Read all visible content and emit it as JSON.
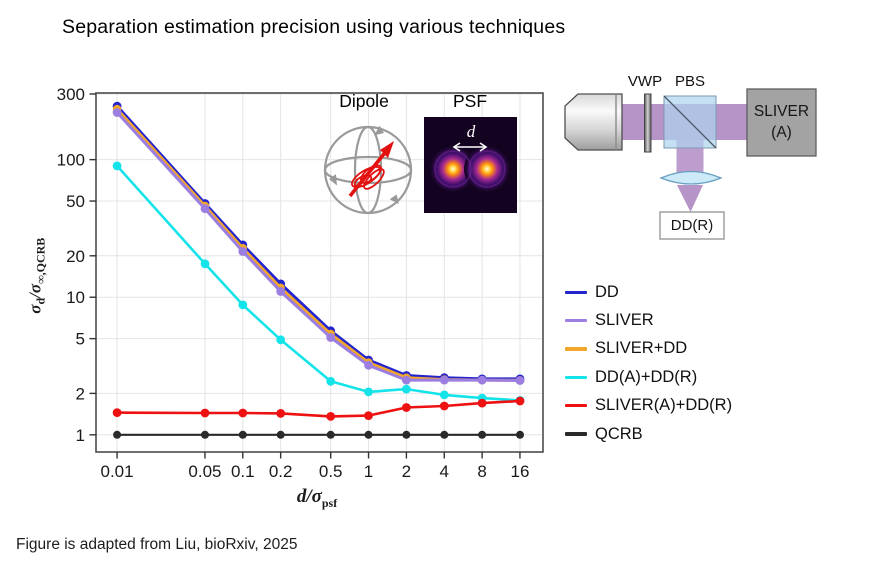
{
  "title": "Separation estimation precision using various techniques",
  "caption": "Figure is adapted from Liu, bioRxiv, 2025",
  "axes": {
    "x_label": {
      "sym1": "d",
      "sep": "/",
      "sym2": "σ",
      "sub2": "psf"
    },
    "y_label": {
      "sym1": "σ",
      "sub1": "d",
      "sep": "/",
      "sym2": "σ",
      "sub2": "∞,QCRB"
    }
  },
  "chart_data": {
    "type": "line",
    "x_scale": "log",
    "y_scale": "log",
    "grid": true,
    "legend_position": "right",
    "x": [
      0.01,
      0.05,
      0.1,
      0.2,
      0.5,
      1,
      2,
      4,
      8,
      16
    ],
    "x_tick_labels": [
      "0.01",
      "0.05",
      "0.1",
      "0.2",
      "0.5",
      "1",
      "2",
      "4",
      "8",
      "16"
    ],
    "y_ticks": [
      300,
      100,
      50,
      20,
      10,
      5,
      2,
      1
    ],
    "xlim": [
      0.0068,
      24.4
    ],
    "ylim": [
      0.75,
      305
    ],
    "series": [
      {
        "name": "DD",
        "color": "#2323cf",
        "width": 3.0,
        "marker_r": 4.4,
        "values": [
          245,
          48,
          24,
          12.5,
          5.7,
          3.5,
          2.7,
          2.6,
          2.55,
          2.55
        ]
      },
      {
        "name": "SLIVER",
        "color": "#9b7ee0",
        "width": 3.0,
        "marker_r": 4.4,
        "values": [
          220,
          44,
          21.5,
          11,
          5.1,
          3.2,
          2.5,
          2.5,
          2.5,
          2.48
        ]
      },
      {
        "name": "SLIVER+DD",
        "color": "#f2a62a",
        "width": 3.0,
        "marker_r": 4.2,
        "values": [
          233,
          46,
          22.7,
          11.7,
          5.4,
          3.35,
          2.6,
          2.52,
          2.5,
          2.49
        ]
      },
      {
        "name": "DD(A)+DD(R)",
        "color": "#14e3e9",
        "width": 2.6,
        "marker_r": 4.4,
        "values": [
          90,
          17.5,
          8.8,
          4.9,
          2.45,
          2.05,
          2.15,
          1.95,
          1.85,
          1.78
        ]
      },
      {
        "name": "SLIVER(A)+DD(R)",
        "color": "#ee1111",
        "width": 2.6,
        "marker_r": 4.4,
        "values": [
          1.45,
          1.44,
          1.44,
          1.43,
          1.36,
          1.38,
          1.58,
          1.62,
          1.7,
          1.76
        ]
      },
      {
        "name": "QCRB",
        "color": "#2a2a2a",
        "width": 2.2,
        "marker_r": 4.0,
        "values": [
          1,
          1,
          1,
          1,
          1,
          1,
          1,
          1,
          1,
          1
        ]
      }
    ]
  },
  "insets": {
    "dipole_label": "Dipole",
    "psf_label": "PSF",
    "psf_separation_label": "d"
  },
  "diagram": {
    "vwp_label": "VWP",
    "pbs_label": "PBS",
    "sliver_label_line1": "SLIVER",
    "sliver_label_line2": "(A)",
    "ddr_label": "DD(R)"
  }
}
